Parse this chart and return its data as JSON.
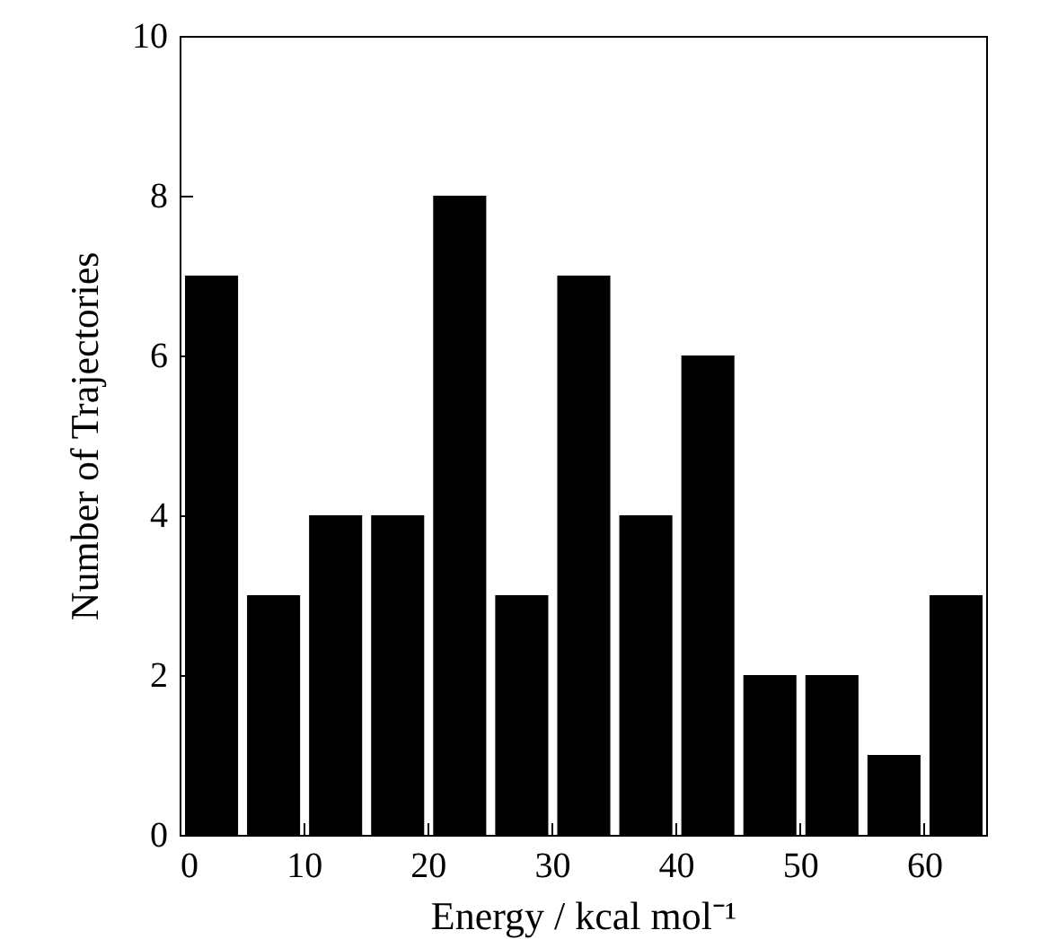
{
  "chart_data": {
    "type": "histogram",
    "xlabel": "Energy / kcal mol⁻¹",
    "ylabel": "Number of Trajectories",
    "bins": [
      0,
      5,
      10,
      15,
      20,
      25,
      30,
      35,
      40,
      45,
      50,
      55,
      60,
      65
    ],
    "values": [
      7,
      3,
      4,
      4,
      8,
      3,
      7,
      4,
      6,
      2,
      2,
      1,
      3
    ],
    "color": "#000000",
    "xlim": [
      0,
      65
    ],
    "xticks": [
      0,
      10,
      20,
      30,
      40,
      50,
      60
    ],
    "ylim": [
      0,
      10
    ],
    "yticks": [
      0,
      2,
      4,
      6,
      8,
      10
    ],
    "grid": false
  }
}
